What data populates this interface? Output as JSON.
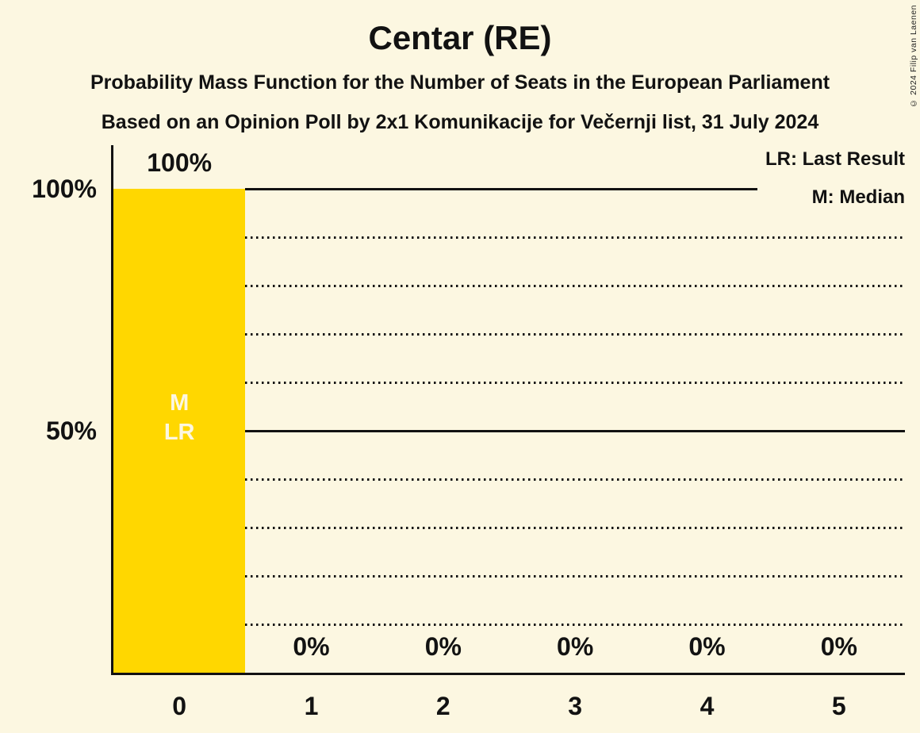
{
  "page": {
    "copyright": "© 2024 Filip van Laenen"
  },
  "chart_data": {
    "type": "bar",
    "title": "Centar (RE)",
    "subtitle": "Probability Mass Function for the Number of Seats in the European Parliament",
    "source_line": "Based on an Opinion Poll by 2x1 Komunikacije for Večernji list, 31 July 2024",
    "categories": [
      "0",
      "1",
      "2",
      "3",
      "4",
      "5"
    ],
    "values": [
      100,
      0,
      0,
      0,
      0,
      0
    ],
    "value_labels": [
      "100%",
      "0%",
      "0%",
      "0%",
      "0%",
      "0%"
    ],
    "y_axis": {
      "range": [
        0,
        100
      ],
      "ticks": [
        {
          "value": 100,
          "label": "100%"
        },
        {
          "value": 50,
          "label": "50%"
        }
      ],
      "solid_lines": [
        100,
        50
      ],
      "dotted_lines": [
        90,
        80,
        70,
        60,
        40,
        30,
        20,
        10
      ]
    },
    "annotations": {
      "bar_index": 0,
      "lines": [
        "M",
        "LR"
      ]
    },
    "legend": [
      {
        "abbr": "LR",
        "meaning": "Last Result",
        "label": "LR: Last Result"
      },
      {
        "abbr": "M",
        "meaning": "Median",
        "label": "M: Median"
      }
    ],
    "colors": {
      "background": "#FCF7E1",
      "bar": "#FFD700",
      "text": "#121212",
      "bar_annotation_text": "#FCF7E1"
    }
  }
}
